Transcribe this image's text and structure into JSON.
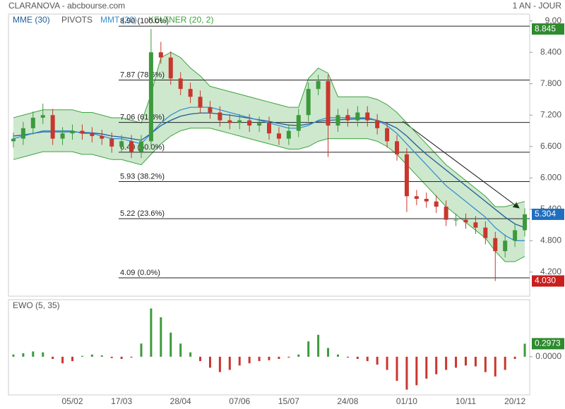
{
  "header": {
    "title": "CLARANOVA - abcbourse.com",
    "period": "1 AN - JOUR"
  },
  "chart_data": [
    {
      "type": "candlestick",
      "legend_extra": "PIVOTS",
      "categories": [
        null,
        null,
        null,
        null,
        null,
        null,
        "05/02",
        null,
        null,
        null,
        null,
        "17/03",
        null,
        null,
        null,
        null,
        null,
        "28/04",
        null,
        null,
        null,
        null,
        null,
        "07/06",
        null,
        null,
        null,
        null,
        "15/07",
        null,
        null,
        null,
        null,
        null,
        "24/08",
        null,
        null,
        null,
        null,
        null,
        "01/10",
        null,
        null,
        null,
        null,
        null,
        "10/11",
        null,
        null,
        null,
        null,
        "20/12",
        null
      ],
      "open": [
        6.7,
        6.75,
        6.95,
        7.15,
        7.2,
        6.75,
        6.85,
        6.9,
        6.85,
        6.8,
        6.75,
        6.6,
        6.7,
        6.5,
        6.7,
        8.4,
        8.3,
        7.9,
        7.7,
        7.55,
        7.35,
        7.25,
        7.1,
        7.05,
        7.1,
        7.0,
        7.05,
        6.85,
        6.75,
        6.9,
        7.2,
        7.7,
        7.85,
        7.0,
        7.2,
        7.1,
        7.25,
        7.1,
        6.95,
        6.7,
        6.45,
        5.65,
        5.6,
        5.55,
        5.45,
        5.2,
        5.2,
        5.15,
        5.05,
        4.85,
        4.6,
        4.8,
        5.0
      ],
      "high": [
        6.87,
        7.07,
        7.27,
        7.42,
        7.32,
        6.97,
        7.02,
        7.02,
        6.97,
        6.92,
        6.87,
        6.82,
        6.82,
        6.82,
        8.845,
        8.6,
        8.42,
        8.02,
        7.82,
        7.67,
        7.47,
        7.37,
        7.22,
        7.22,
        7.22,
        7.17,
        7.17,
        6.97,
        7.02,
        7.32,
        7.82,
        7.97,
        7.97,
        7.32,
        7.32,
        7.37,
        7.37,
        7.22,
        7.07,
        6.82,
        6.57,
        5.77,
        5.72,
        5.67,
        5.57,
        5.32,
        5.32,
        5.27,
        5.17,
        4.97,
        4.92,
        5.12,
        5.42
      ],
      "low": [
        6.58,
        6.63,
        6.83,
        7.03,
        6.63,
        6.63,
        6.73,
        6.73,
        6.68,
        6.63,
        6.48,
        6.48,
        6.38,
        6.38,
        6.58,
        8.18,
        7.78,
        7.58,
        7.43,
        7.23,
        7.13,
        6.98,
        6.93,
        6.93,
        6.88,
        6.88,
        6.73,
        6.63,
        6.63,
        6.78,
        7.08,
        7.58,
        6.4,
        6.88,
        6.98,
        6.98,
        6.98,
        6.83,
        6.58,
        6.33,
        5.35,
        5.48,
        5.43,
        5.33,
        5.08,
        5.08,
        5.03,
        4.93,
        4.73,
        4.03,
        4.48,
        4.68,
        4.88
      ],
      "close": [
        6.75,
        6.95,
        7.15,
        7.2,
        6.75,
        6.85,
        6.9,
        6.85,
        6.8,
        6.75,
        6.6,
        6.7,
        6.5,
        6.7,
        8.4,
        8.3,
        7.9,
        7.7,
        7.55,
        7.35,
        7.25,
        7.1,
        7.05,
        7.1,
        7.0,
        7.05,
        6.85,
        6.75,
        6.9,
        7.2,
        7.7,
        7.85,
        7.0,
        7.2,
        7.1,
        7.25,
        7.1,
        6.95,
        6.7,
        6.45,
        5.65,
        5.6,
        5.55,
        5.45,
        5.2,
        5.2,
        5.15,
        5.05,
        4.85,
        4.6,
        4.8,
        5.0,
        5.304
      ],
      "up_color": "#3c9a3c",
      "down_color": "#c8372d",
      "series": [
        {
          "name": "MME (30)",
          "color": "#1f5d9c",
          "values": [
            6.8,
            6.82,
            6.85,
            6.88,
            6.88,
            6.88,
            6.88,
            6.87,
            6.86,
            6.84,
            6.8,
            6.78,
            6.75,
            6.72,
            6.85,
            7.0,
            7.1,
            7.18,
            7.22,
            7.24,
            7.24,
            7.22,
            7.2,
            7.17,
            7.14,
            7.11,
            7.08,
            7.04,
            7.01,
            7.0,
            7.03,
            7.08,
            7.1,
            7.11,
            7.12,
            7.13,
            7.13,
            7.1,
            7.04,
            6.95,
            6.8,
            6.62,
            6.45,
            6.3,
            6.15,
            6.0,
            5.85,
            5.7,
            5.55,
            5.4,
            5.25,
            5.12,
            5.05
          ]
        },
        {
          "name": "MMT (20)",
          "color": "#3a8fd0",
          "values": [
            6.75,
            6.8,
            6.85,
            6.9,
            6.9,
            6.9,
            6.9,
            6.85,
            6.85,
            6.8,
            6.75,
            6.75,
            6.7,
            6.65,
            6.85,
            7.05,
            7.2,
            7.3,
            7.35,
            7.35,
            7.35,
            7.3,
            7.25,
            7.2,
            7.15,
            7.1,
            7.05,
            7.0,
            6.95,
            6.95,
            7.0,
            7.1,
            7.15,
            7.15,
            7.15,
            7.15,
            7.15,
            7.1,
            7.0,
            6.85,
            6.65,
            6.45,
            6.25,
            6.05,
            5.85,
            5.7,
            5.55,
            5.4,
            5.25,
            5.05,
            4.9,
            4.8,
            4.8
          ]
        }
      ],
      "keltner": {
        "name": "KELTNER (20, 2)",
        "color": "#3da33d",
        "upper": [
          7.15,
          7.2,
          7.25,
          7.3,
          7.3,
          7.3,
          7.3,
          7.25,
          7.25,
          7.2,
          7.15,
          7.15,
          7.1,
          7.05,
          7.6,
          8.3,
          8.4,
          8.3,
          8.1,
          7.95,
          7.75,
          7.7,
          7.65,
          7.6,
          7.55,
          7.5,
          7.45,
          7.4,
          7.35,
          7.35,
          7.9,
          8.1,
          8.0,
          7.55,
          7.55,
          7.55,
          7.55,
          7.5,
          7.4,
          7.25,
          7.05,
          6.85,
          6.65,
          6.45,
          6.25,
          6.1,
          5.95,
          5.8,
          5.65,
          5.45,
          5.45,
          5.5,
          5.55
        ],
        "lower": [
          6.35,
          6.4,
          6.45,
          6.5,
          6.5,
          6.5,
          6.5,
          6.45,
          6.45,
          6.4,
          6.35,
          6.35,
          6.3,
          6.25,
          6.45,
          6.65,
          6.8,
          6.9,
          6.95,
          6.95,
          6.95,
          6.9,
          6.85,
          6.8,
          6.75,
          6.7,
          6.65,
          6.6,
          6.55,
          6.55,
          6.6,
          6.7,
          6.75,
          6.75,
          6.75,
          6.75,
          6.75,
          6.7,
          6.6,
          6.45,
          6.25,
          6.05,
          5.85,
          5.65,
          5.45,
          5.3,
          5.15,
          5.0,
          4.85,
          4.6,
          4.4,
          4.4,
          4.5
        ]
      },
      "fib_levels": [
        {
          "value": 8.9,
          "label": "8.90  (100.0%)"
        },
        {
          "value": 7.87,
          "label": "7.87  (78.6%)"
        },
        {
          "value": 7.06,
          "label": "7.06  (61.8%)"
        },
        {
          "value": 6.49,
          "label": "6.49  (50.0%)"
        },
        {
          "value": 5.93,
          "label": "5.93  (38.2%)"
        },
        {
          "value": 5.22,
          "label": "5.22  (23.6%)"
        },
        {
          "value": 4.09,
          "label": "4.09  (0.0%)"
        }
      ],
      "markers": [
        {
          "value": 8.845,
          "color": "#2e8b2e"
        },
        {
          "value": 5.304,
          "color": "#1f6fc0"
        },
        {
          "value": {
            "value": 4.03,
            "label": "4.030"
          },
          "color": "#c81e1e"
        }
      ],
      "ylim": [
        3.74,
        9.13
      ],
      "yticks": [
        {
          "value": 9.0,
          "label": "9.00"
        },
        {
          "value": 8.4,
          "label": "8.400"
        },
        {
          "value": 7.8,
          "label": "7.800"
        },
        {
          "value": 7.2,
          "label": "7.200"
        },
        {
          "value": 6.6,
          "label": "6.600"
        },
        {
          "value": 6.0,
          "label": "6.000"
        },
        {
          "value": 5.4,
          "label": "5.400"
        },
        {
          "value": 4.8,
          "label": "4.800"
        },
        {
          "value": 4.2,
          "label": "4.200"
        }
      ]
    },
    {
      "type": "bar",
      "title": "EWO (5, 35)",
      "values": [
        0.05,
        0.08,
        0.12,
        0.1,
        -0.05,
        -0.15,
        -0.1,
        0.02,
        0.05,
        0.03,
        -0.03,
        -0.05,
        -0.02,
        0.3,
        1.1,
        0.9,
        0.55,
        0.3,
        0.1,
        -0.1,
        -0.25,
        -0.35,
        -0.3,
        -0.2,
        -0.15,
        -0.1,
        -0.08,
        -0.05,
        -0.02,
        0.05,
        0.35,
        0.5,
        0.2,
        0.05,
        -0.02,
        -0.05,
        -0.1,
        -0.18,
        -0.3,
        -0.55,
        -0.75,
        -0.65,
        -0.5,
        -0.4,
        -0.3,
        -0.25,
        -0.2,
        -0.22,
        -0.35,
        -0.45,
        -0.3,
        -0.05,
        0.2973
      ],
      "up_color": "#3c9a3c",
      "down_color": "#c8372d",
      "markers": [
        {
          "value": 0.2973,
          "color": "#2e8b2e"
        }
      ],
      "ylim": [
        -0.87,
        1.3
      ],
      "yticks": [
        {
          "value": 0,
          "label": "0.0000"
        }
      ]
    }
  ]
}
